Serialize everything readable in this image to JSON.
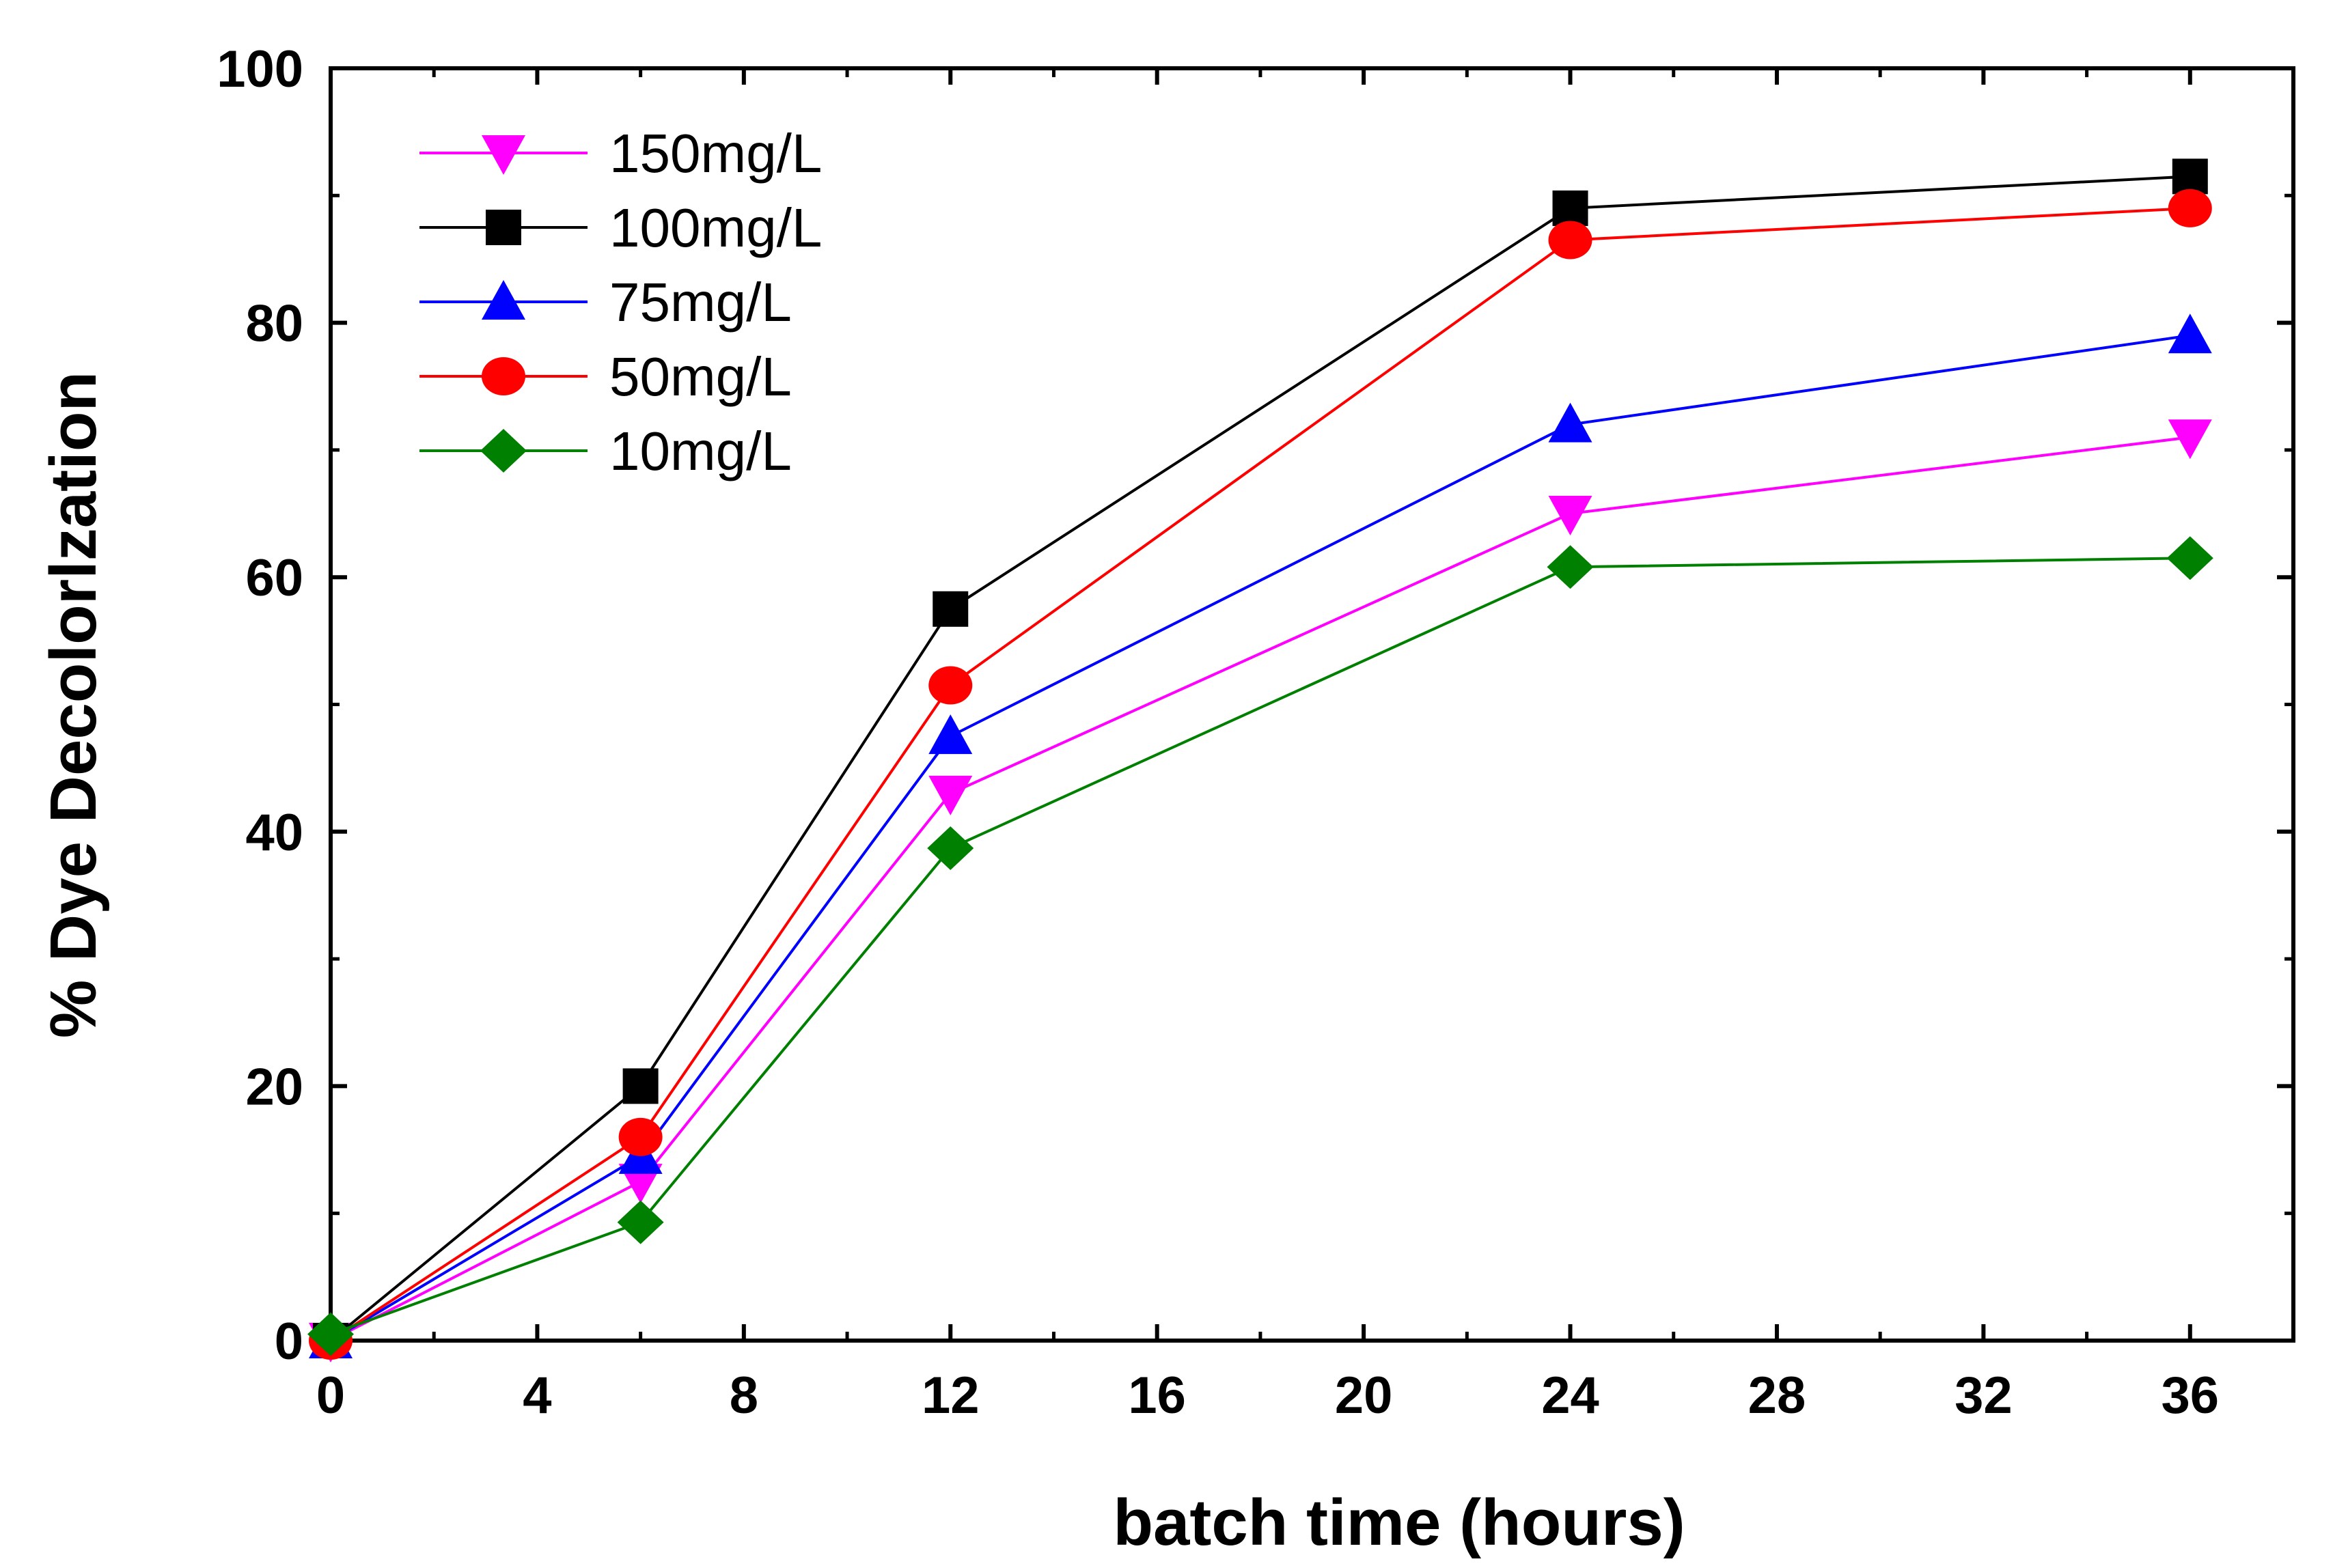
{
  "chart_data": {
    "type": "line",
    "title": "",
    "xlabel": "batch time (hours)",
    "ylabel": "% Dye Decolorlzation",
    "xlim": [
      0,
      38
    ],
    "ylim": [
      0,
      100
    ],
    "x_ticks": [
      0,
      4,
      8,
      12,
      16,
      20,
      24,
      28,
      32,
      36
    ],
    "x_tick_labels": [
      "0",
      "4",
      "8",
      "12",
      "16",
      "20",
      "24",
      "28",
      "32",
      "36"
    ],
    "y_ticks": [
      0,
      20,
      40,
      60,
      80,
      100
    ],
    "y_tick_labels": [
      "0",
      "20",
      "40",
      "60",
      "80",
      "100"
    ],
    "x": [
      0,
      6,
      12,
      24,
      36
    ],
    "legend_position": "top-left",
    "series": [
      {
        "name": "150mg/L",
        "marker": "triangle-down",
        "color": "#ff00ff",
        "values": [
          0,
          12.5,
          43,
          65,
          71
        ]
      },
      {
        "name": "100mg/L",
        "marker": "square",
        "color": "#000000",
        "values": [
          0,
          20,
          57.5,
          89,
          91.5
        ]
      },
      {
        "name": "75mg/L",
        "marker": "triangle-up",
        "color": "#0000ff",
        "values": [
          0,
          14.5,
          47.5,
          72,
          79
        ]
      },
      {
        "name": "50mg/L",
        "marker": "circle",
        "color": "#ff0000",
        "values": [
          0,
          16,
          51.5,
          86.5,
          89
        ]
      },
      {
        "name": "10mg/L",
        "marker": "diamond",
        "color": "#008000",
        "values": [
          0.5,
          9.3,
          38.7,
          60.8,
          61.5
        ]
      }
    ]
  }
}
